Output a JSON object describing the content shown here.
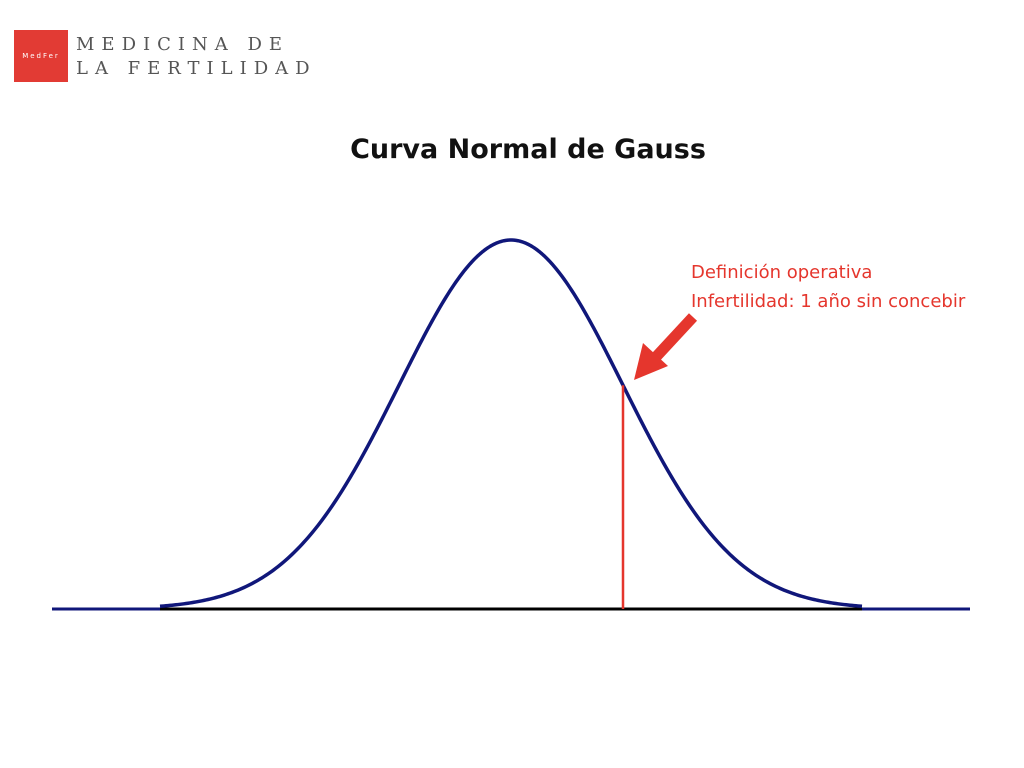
{
  "logo": {
    "mark": "MedFer",
    "name_line1": "MEDICINA DE",
    "name_line2": "LA FERTILIDAD"
  },
  "chart_data": {
    "type": "line",
    "title": "Curva Normal de Gauss",
    "xlabel": "",
    "ylabel": "",
    "distribution": "normal",
    "marker": {
      "position_sd": 1,
      "color": "#e5362d"
    }
  },
  "annotation": {
    "line1": "Definición operativa",
    "line2": "Infertilidad: 1 año sin concebir",
    "arrow_icon": "arrow-down-left-icon"
  },
  "colors": {
    "brand": "#e23b34",
    "curve": "#10177a",
    "baseline": "#000000",
    "annotation": "#e5362d"
  }
}
